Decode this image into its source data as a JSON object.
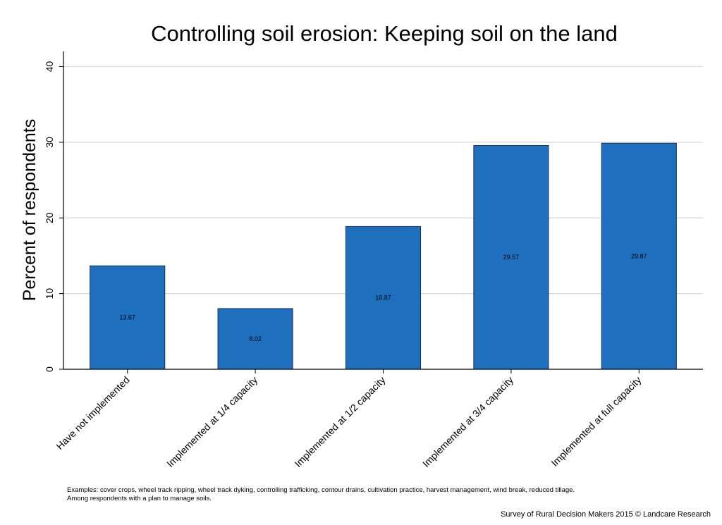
{
  "chart_data": {
    "type": "bar",
    "title": "Controlling soil erosion: Keeping soil on the land",
    "ylabel": "Percent of respondents",
    "xlabel": "",
    "ylim": [
      0,
      42
    ],
    "yticks": [
      0,
      10,
      20,
      30,
      40
    ],
    "grid": true,
    "legend": "none",
    "categories": [
      "Have not implemented",
      "Implemented at 1/4 capacity",
      "Implemented at 1/2 capacity",
      "Implemented at 3/4 capacity",
      "Implemented at full capacity"
    ],
    "values": [
      13.67,
      8.02,
      18.87,
      29.57,
      29.87
    ],
    "data_labels": [
      "13.67",
      "8.02",
      "18.87",
      "29.57",
      "29.87"
    ],
    "bar_color": "#1f6fbf",
    "bar_edge_color": "#17325a",
    "grid_color": "#d9d9d9"
  },
  "notes": {
    "line1": "Examples: cover crops, wheel track ripping, wheel track dyking, controlling trafficking, contour drains, cultivation practice, harvest management, wind break, reduced tillage.",
    "line2": "Among respondents with a plan to manage soils."
  },
  "credit": "Survey of Rural Decision Makers 2015 © Landcare Research"
}
